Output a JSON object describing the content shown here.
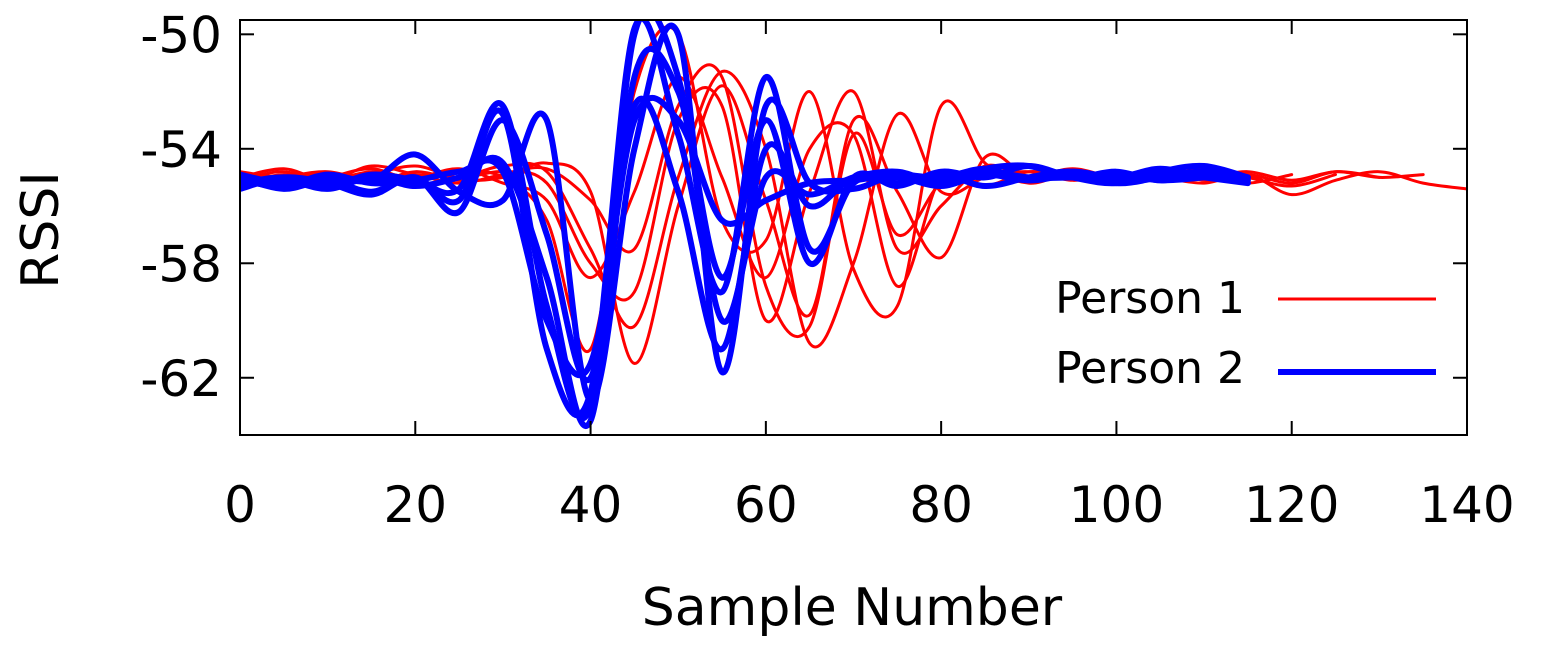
{
  "chart_data": {
    "type": "line",
    "title": "",
    "xlabel": "Sample Number",
    "ylabel": "RSSI",
    "xlim": [
      0,
      140
    ],
    "ylim": [
      -64,
      -49.5
    ],
    "x_ticks": [
      0,
      20,
      40,
      60,
      80,
      100,
      120,
      140
    ],
    "x_tick_labels": [
      "0",
      "20",
      "40",
      "60",
      "80",
      "100",
      "120",
      "140"
    ],
    "y_ticks": [
      -50,
      -54,
      -58,
      -62
    ],
    "y_tick_labels": [
      "-50",
      "-54",
      "-58",
      "-62"
    ],
    "grid": false,
    "legend_position": "bottom-right",
    "legend": [
      {
        "label": "Person 1",
        "color": "#ff0000"
      },
      {
        "label": "Person 2",
        "color": "#0000ff"
      }
    ],
    "series": [
      {
        "name": "Person 1",
        "color": "#ff0000",
        "group": 0,
        "x": [
          0,
          5,
          10,
          15,
          20,
          25,
          30,
          35,
          40,
          45,
          50,
          55,
          60,
          65,
          70,
          75,
          80,
          85,
          90,
          95,
          100,
          105,
          110,
          115,
          120,
          125,
          130,
          135
        ],
        "y": [
          -55.0,
          -54.7,
          -55.1,
          -54.6,
          -54.9,
          -55.2,
          -54.9,
          -54.7,
          -55.8,
          -57.5,
          -52.5,
          -51.5,
          -58.8,
          -60.2,
          -53.5,
          -57.0,
          -55.2,
          -54.9,
          -55.0,
          -54.7,
          -55.0,
          -54.9,
          -55.0,
          -54.8,
          -55.1,
          -54.8,
          -55.0,
          -54.9
        ]
      },
      {
        "name": "",
        "color": "#ff0000",
        "group": 0,
        "x": [
          0,
          5,
          10,
          15,
          20,
          25,
          30,
          35,
          40,
          45,
          50,
          55,
          60,
          65,
          70,
          75,
          80,
          85,
          90,
          95,
          100,
          105,
          110,
          115,
          120,
          125,
          130,
          135,
          140
        ],
        "y": [
          -55.3,
          -55.0,
          -54.8,
          -55.1,
          -54.9,
          -55.0,
          -54.6,
          -54.8,
          -57.5,
          -60.2,
          -55.0,
          -51.3,
          -54.0,
          -60.8,
          -58.0,
          -52.8,
          -55.5,
          -55.0,
          -54.8,
          -55.1,
          -54.9,
          -55.0,
          -55.2,
          -54.9,
          -55.6,
          -55.1,
          -54.8,
          -55.2,
          -55.4
        ]
      },
      {
        "name": "",
        "color": "#ff0000",
        "group": 0,
        "x": [
          0,
          5,
          10,
          15,
          20,
          25,
          30,
          35,
          40,
          45,
          50,
          55,
          60,
          65,
          70,
          75,
          80,
          85,
          90,
          95,
          100,
          105,
          110,
          115,
          120,
          125,
          130
        ],
        "y": [
          -54.9,
          -55.2,
          -55.0,
          -54.7,
          -55.1,
          -54.8,
          -55.0,
          -56.5,
          -61.0,
          -52.0,
          -50.0,
          -56.5,
          -57.2,
          -52.0,
          -58.2,
          -59.5,
          -52.5,
          -54.5,
          -55.2,
          -54.8,
          -55.0,
          -54.7,
          -55.1,
          -54.9,
          -55.2,
          -54.8,
          -55.0
        ]
      },
      {
        "name": "",
        "color": "#ff0000",
        "group": 0,
        "x": [
          0,
          5,
          10,
          15,
          20,
          25,
          30,
          35,
          40,
          45,
          50,
          55,
          60,
          65,
          70,
          75,
          80,
          85,
          90,
          95,
          100,
          105,
          110,
          115,
          120,
          125
        ],
        "y": [
          -55.1,
          -54.8,
          -55.2,
          -54.9,
          -54.6,
          -55.0,
          -54.8,
          -55.2,
          -58.0,
          -59.0,
          -53.0,
          -52.5,
          -60.0,
          -55.5,
          -52.0,
          -57.5,
          -56.0,
          -54.6,
          -55.0,
          -54.8,
          -55.1,
          -55.0,
          -54.7,
          -55.0,
          -55.3,
          -54.9
        ]
      },
      {
        "name": "",
        "color": "#ff0000",
        "group": 0,
        "x": [
          0,
          5,
          10,
          15,
          20,
          25,
          30,
          35,
          40,
          45,
          50,
          55,
          60,
          65,
          70,
          75,
          80,
          85,
          90,
          95,
          100,
          105,
          110,
          115,
          120
        ],
        "y": [
          -54.8,
          -55.0,
          -54.9,
          -55.2,
          -54.8,
          -55.1,
          -55.0,
          -54.5,
          -55.5,
          -61.5,
          -56.0,
          -51.8,
          -55.8,
          -59.8,
          -53.0,
          -55.5,
          -57.8,
          -54.3,
          -55.0,
          -54.9,
          -55.1,
          -54.8,
          -55.0,
          -55.2,
          -54.9
        ]
      },
      {
        "name": "",
        "color": "#ff0000",
        "group": 0,
        "x": [
          0,
          5,
          10,
          15,
          20,
          25,
          30,
          35,
          40,
          45,
          50,
          55,
          60,
          65,
          70,
          75,
          80,
          85,
          90,
          95,
          100,
          105,
          110,
          115
        ],
        "y": [
          -55.2,
          -54.9,
          -55.1,
          -54.8,
          -55.0,
          -54.7,
          -55.2,
          -55.8,
          -58.5,
          -55.5,
          -51.5,
          -55.0,
          -58.5,
          -54.0,
          -53.5,
          -58.8,
          -55.0,
          -55.3,
          -54.8,
          -55.0,
          -54.9,
          -55.1,
          -54.9,
          -55.0
        ]
      },
      {
        "name": "Person 2",
        "color": "#0000ff",
        "group": 1,
        "x": [
          0,
          5,
          10,
          15,
          20,
          25,
          30,
          35,
          40,
          45,
          50,
          55,
          60,
          65,
          70,
          75,
          80,
          85,
          90,
          95,
          100,
          105,
          110,
          115
        ],
        "y": [
          -55.2,
          -55.0,
          -55.3,
          -54.9,
          -55.1,
          -55.4,
          -52.5,
          -59.5,
          -63.0,
          -50.0,
          -51.5,
          -60.0,
          -55.0,
          -55.6,
          -55.0,
          -54.8,
          -55.2,
          -54.7,
          -54.6,
          -55.0,
          -54.8,
          -55.1,
          -54.9,
          -55.0
        ]
      },
      {
        "name": "",
        "color": "#0000ff",
        "group": 1,
        "x": [
          0,
          5,
          10,
          15,
          20,
          25,
          30,
          35,
          40,
          45,
          50,
          55,
          60,
          65,
          70,
          75,
          80,
          85,
          90,
          95,
          100,
          105,
          110
        ],
        "y": [
          -55.0,
          -55.4,
          -55.1,
          -55.5,
          -55.0,
          -55.8,
          -52.8,
          -61.0,
          -62.5,
          -49.8,
          -53.5,
          -59.0,
          -51.5,
          -57.5,
          -55.2,
          -55.0,
          -55.3,
          -54.9,
          -55.1,
          -54.8,
          -55.0,
          -54.7,
          -55.0
        ]
      },
      {
        "name": "",
        "color": "#0000ff",
        "group": 1,
        "x": [
          0,
          5,
          10,
          15,
          20,
          25,
          30,
          35,
          40,
          45,
          50,
          55,
          60,
          65,
          70,
          75,
          80,
          85,
          90,
          95,
          100,
          105,
          110,
          115
        ],
        "y": [
          -55.3,
          -55.1,
          -55.4,
          -55.0,
          -55.3,
          -55.0,
          -54.5,
          -58.5,
          -63.5,
          -51.5,
          -52.0,
          -58.5,
          -53.0,
          -58.0,
          -55.0,
          -55.3,
          -54.8,
          -55.0,
          -54.6,
          -55.0,
          -55.2,
          -54.8,
          -54.6,
          -55.0
        ]
      },
      {
        "name": "",
        "color": "#0000ff",
        "group": 1,
        "x": [
          0,
          5,
          10,
          15,
          20,
          25,
          30,
          35,
          40,
          45,
          50,
          55,
          60,
          65,
          70,
          75,
          80,
          85,
          90,
          95,
          100,
          105,
          110
        ],
        "y": [
          -54.9,
          -55.2,
          -55.0,
          -55.1,
          -54.2,
          -55.5,
          -55.8,
          -53.0,
          -62.8,
          -54.0,
          -50.0,
          -61.8,
          -52.5,
          -55.2,
          -55.4,
          -54.9,
          -55.1,
          -54.8,
          -55.0,
          -55.0,
          -54.9,
          -55.1,
          -55.0
        ]
      },
      {
        "name": "",
        "color": "#0000ff",
        "group": 1,
        "x": [
          0,
          5,
          10,
          15,
          20,
          25,
          30,
          35,
          40,
          45,
          50,
          55,
          60,
          65,
          70,
          75,
          80,
          85,
          90,
          95,
          100,
          105,
          110,
          115
        ],
        "y": [
          -55.4,
          -55.0,
          -55.2,
          -55.6,
          -55.0,
          -56.2,
          -53.0,
          -57.0,
          -62.0,
          -52.5,
          -55.5,
          -61.0,
          -54.0,
          -56.0,
          -55.0,
          -55.2,
          -54.9,
          -55.3,
          -55.0,
          -54.8,
          -55.2,
          -55.0,
          -54.8,
          -55.1
        ]
      },
      {
        "name": "",
        "color": "#0000ff",
        "group": 1,
        "x": [
          0,
          5,
          10,
          15,
          20,
          25,
          30,
          35,
          40,
          45,
          50,
          55,
          60,
          65,
          70,
          75,
          80,
          85,
          90,
          95,
          100,
          105,
          110,
          115
        ],
        "y": [
          -55.1,
          -55.3,
          -54.9,
          -55.2,
          -55.1,
          -54.8,
          -54.8,
          -60.0,
          -61.5,
          -53.0,
          -53.0,
          -56.5,
          -55.8,
          -55.2,
          -55.1,
          -54.9,
          -55.0,
          -54.7,
          -55.1,
          -54.9,
          -55.0,
          -54.8,
          -55.0,
          -55.2
        ]
      }
    ]
  }
}
